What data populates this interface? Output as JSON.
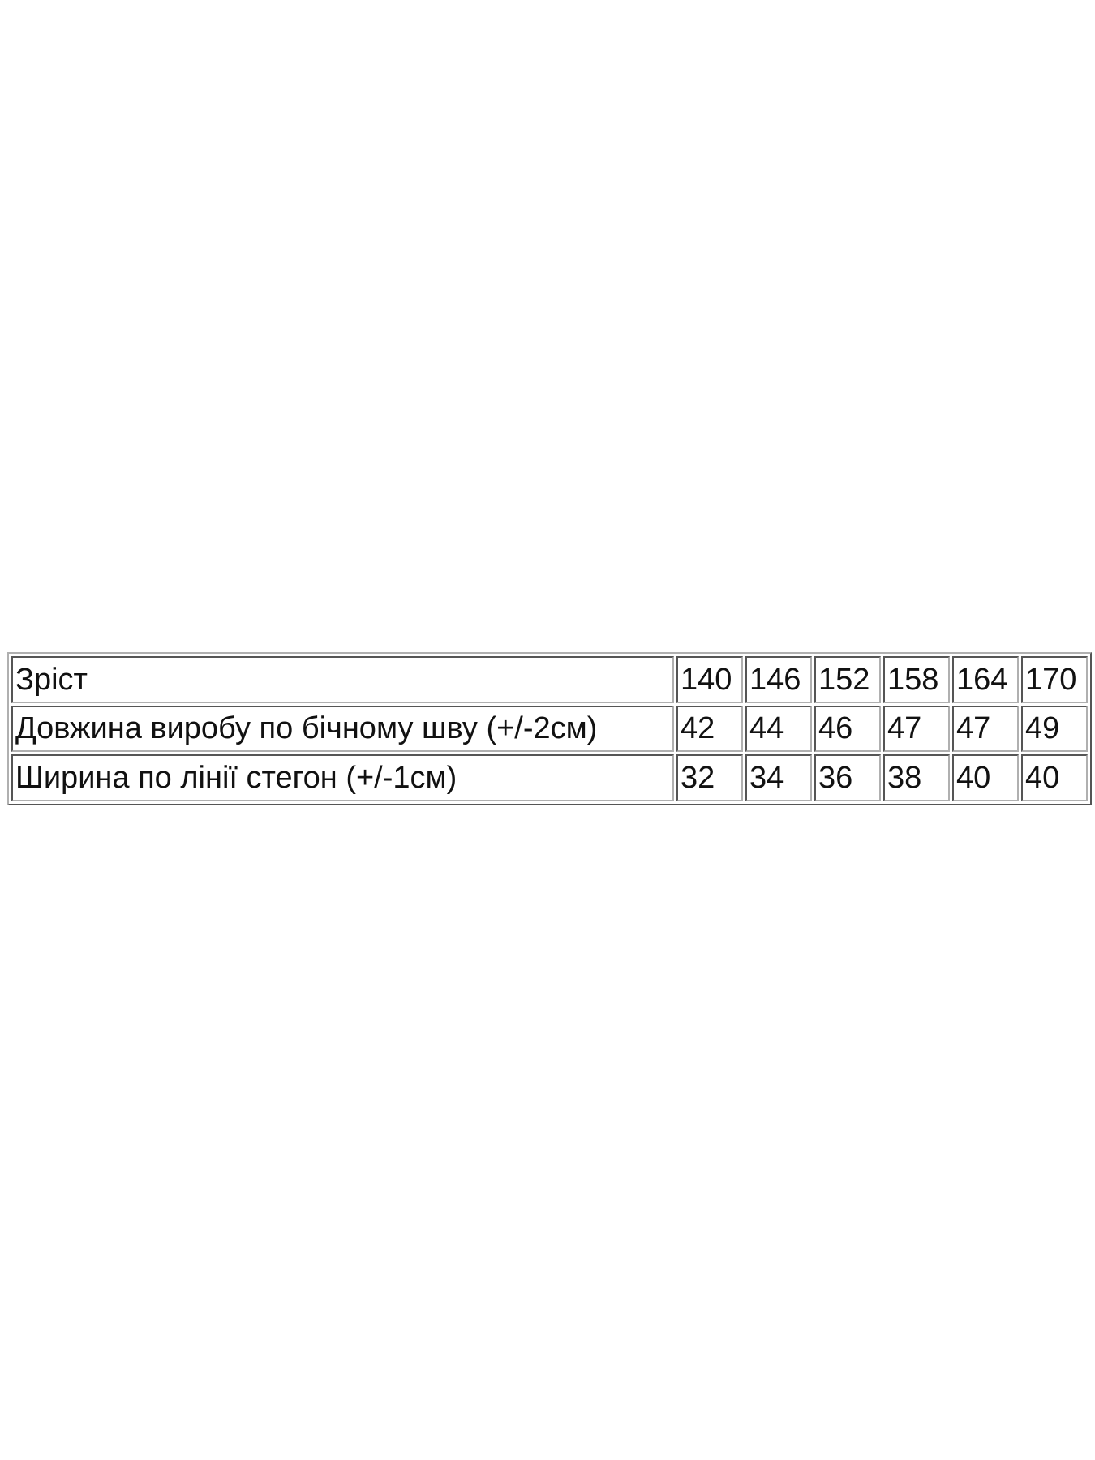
{
  "table": {
    "rows": [
      {
        "label": "Зріст",
        "values": [
          "140",
          "146",
          "152",
          "158",
          "164",
          "170"
        ]
      },
      {
        "label": "Довжина виробу по бічному шву (+/-2см)",
        "values": [
          "42",
          "44",
          "46",
          "47",
          "47",
          "49"
        ]
      },
      {
        "label": "Ширина по лінії стегон (+/-1см)",
        "values": [
          "32",
          "34",
          "36",
          "38",
          "40",
          "40"
        ]
      }
    ]
  }
}
